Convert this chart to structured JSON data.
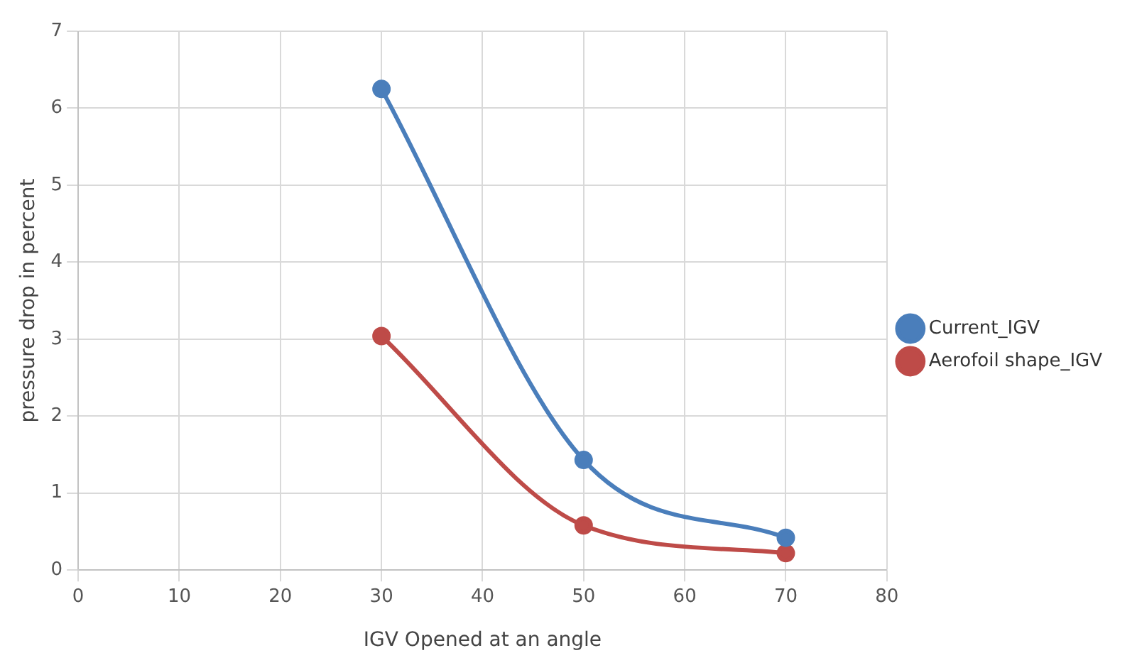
{
  "chart_data": {
    "type": "line",
    "xlabel": "IGV Opened at an angle",
    "ylabel": "pressure drop in percent",
    "xlim": [
      0,
      80
    ],
    "xticks": [
      0,
      10,
      20,
      30,
      40,
      50,
      60,
      70,
      80
    ],
    "ylim": [
      0,
      7
    ],
    "yticks": [
      0,
      1,
      2,
      3,
      4,
      5,
      6,
      7
    ],
    "grid": true,
    "legend": "right",
    "marker": "circle",
    "line_style": "solid",
    "series": [
      {
        "name": "Current_IGV",
        "color": "#4a7ebb",
        "x": [
          30,
          50,
          70
        ],
        "values": [
          6.25,
          1.43,
          0.42
        ]
      },
      {
        "name": "Aerofoil shape_IGV",
        "color": "#be4b48",
        "x": [
          30,
          50,
          70
        ],
        "values": [
          3.04,
          0.58,
          0.22
        ]
      }
    ]
  }
}
